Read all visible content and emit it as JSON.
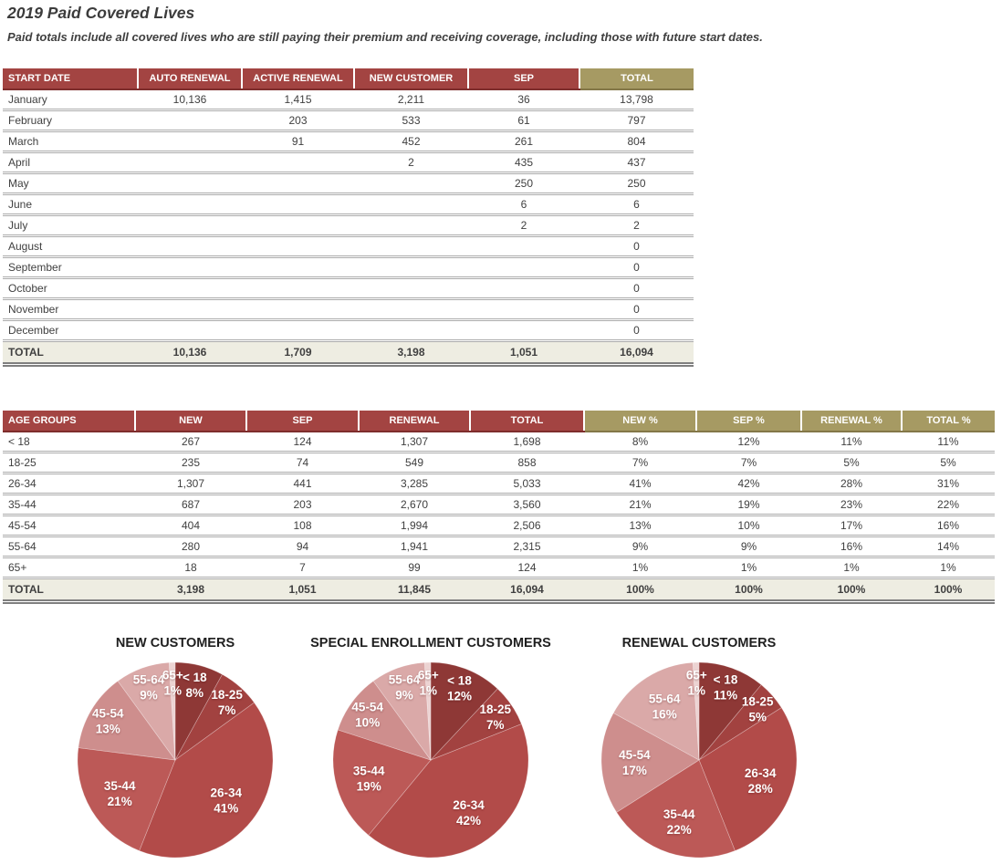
{
  "header": {
    "title": "2019 Paid Covered Lives",
    "subtitle": "Paid totals include all covered lives who are still paying their premium and receiving coverage, including those with future start dates."
  },
  "colors": {
    "header_red": "#A34442",
    "header_gold": "#A69A63",
    "total_row_bg": "#EEEDE2",
    "body_text": "#404040",
    "pie_label_text": "#FFFFFF"
  },
  "table1": {
    "columns": [
      {
        "label": "START DATE",
        "style": "red"
      },
      {
        "label": "AUTO RENEWAL",
        "style": "red"
      },
      {
        "label": "ACTIVE RENEWAL",
        "style": "red"
      },
      {
        "label": "NEW CUSTOMER",
        "style": "red"
      },
      {
        "label": "SEP",
        "style": "red"
      },
      {
        "label": "TOTAL",
        "style": "gold"
      }
    ],
    "rows": [
      [
        "January",
        "10,136",
        "1,415",
        "2,211",
        "36",
        "13,798"
      ],
      [
        "February",
        "",
        "203",
        "533",
        "61",
        "797"
      ],
      [
        "March",
        "",
        "91",
        "452",
        "261",
        "804"
      ],
      [
        "April",
        "",
        "",
        "2",
        "435",
        "437"
      ],
      [
        "May",
        "",
        "",
        "",
        "250",
        "250"
      ],
      [
        "June",
        "",
        "",
        "",
        "6",
        "6"
      ],
      [
        "July",
        "",
        "",
        "",
        "2",
        "2"
      ],
      [
        "August",
        "",
        "",
        "",
        "",
        "0"
      ],
      [
        "September",
        "",
        "",
        "",
        "",
        "0"
      ],
      [
        "October",
        "",
        "",
        "",
        "",
        "0"
      ],
      [
        "November",
        "",
        "",
        "",
        "",
        "0"
      ],
      [
        "December",
        "",
        "",
        "",
        "",
        "0"
      ]
    ],
    "total_row": [
      "TOTAL",
      "10,136",
      "1,709",
      "3,198",
      "1,051",
      "16,094"
    ]
  },
  "table2": {
    "columns": [
      {
        "label": "AGE GROUPS",
        "style": "red"
      },
      {
        "label": "NEW",
        "style": "red"
      },
      {
        "label": "SEP",
        "style": "red"
      },
      {
        "label": "RENEWAL",
        "style": "red"
      },
      {
        "label": "TOTAL",
        "style": "red"
      },
      {
        "label": "NEW %",
        "style": "gold"
      },
      {
        "label": "SEP %",
        "style": "gold"
      },
      {
        "label": "RENEWAL %",
        "style": "gold"
      },
      {
        "label": "TOTAL %",
        "style": "gold"
      }
    ],
    "rows": [
      [
        "< 18",
        "267",
        "124",
        "1,307",
        "1,698",
        "8%",
        "12%",
        "11%",
        "11%"
      ],
      [
        "18-25",
        "235",
        "74",
        "549",
        "858",
        "7%",
        "7%",
        "5%",
        "5%"
      ],
      [
        "26-34",
        "1,307",
        "441",
        "3,285",
        "5,033",
        "41%",
        "42%",
        "28%",
        "31%"
      ],
      [
        "35-44",
        "687",
        "203",
        "2,670",
        "3,560",
        "21%",
        "19%",
        "23%",
        "22%"
      ],
      [
        "45-54",
        "404",
        "108",
        "1,994",
        "2,506",
        "13%",
        "10%",
        "17%",
        "16%"
      ],
      [
        "55-64",
        "280",
        "94",
        "1,941",
        "2,315",
        "9%",
        "9%",
        "16%",
        "14%"
      ],
      [
        "65+",
        "18",
        "7",
        "99",
        "124",
        "1%",
        "1%",
        "1%",
        "1%"
      ]
    ],
    "total_row": [
      "TOTAL",
      "3,198",
      "1,051",
      "11,845",
      "16,094",
      "100%",
      "100%",
      "100%",
      "100%"
    ]
  },
  "chart_data": [
    {
      "type": "pie",
      "title": "NEW CUSTOMERS",
      "categories": [
        "< 18",
        "18-25",
        "26-34",
        "35-44",
        "45-54",
        "55-64",
        "65+"
      ],
      "values": [
        8,
        7,
        41,
        21,
        13,
        9,
        1
      ],
      "unit": "%",
      "start_angle_deg": 0,
      "direction": "clockwise",
      "colors": [
        "#8E3836",
        "#A24240",
        "#B24B49",
        "#BC5957",
        "#CE8E8D",
        "#DAA9A8",
        "#ECD3D2"
      ]
    },
    {
      "type": "pie",
      "title": "SPECIAL ENROLLMENT CUSTOMERS",
      "categories": [
        "< 18",
        "18-25",
        "26-34",
        "35-44",
        "45-54",
        "55-64",
        "65+"
      ],
      "values": [
        12,
        7,
        42,
        19,
        10,
        9,
        1
      ],
      "unit": "%",
      "start_angle_deg": 0,
      "direction": "clockwise",
      "colors": [
        "#8E3836",
        "#A24240",
        "#B24B49",
        "#BC5957",
        "#CE8E8D",
        "#DAA9A8",
        "#ECD3D2"
      ]
    },
    {
      "type": "pie",
      "title": "RENEWAL CUSTOMERS",
      "categories": [
        "< 18",
        "18-25",
        "26-34",
        "35-44",
        "45-54",
        "55-64",
        "65+"
      ],
      "values": [
        11,
        5,
        28,
        22,
        17,
        16,
        1
      ],
      "unit": "%",
      "start_angle_deg": 0,
      "direction": "clockwise",
      "colors": [
        "#8E3836",
        "#A24240",
        "#B24B49",
        "#BC5957",
        "#CE8E8D",
        "#DAA9A8",
        "#ECD3D2"
      ]
    }
  ]
}
